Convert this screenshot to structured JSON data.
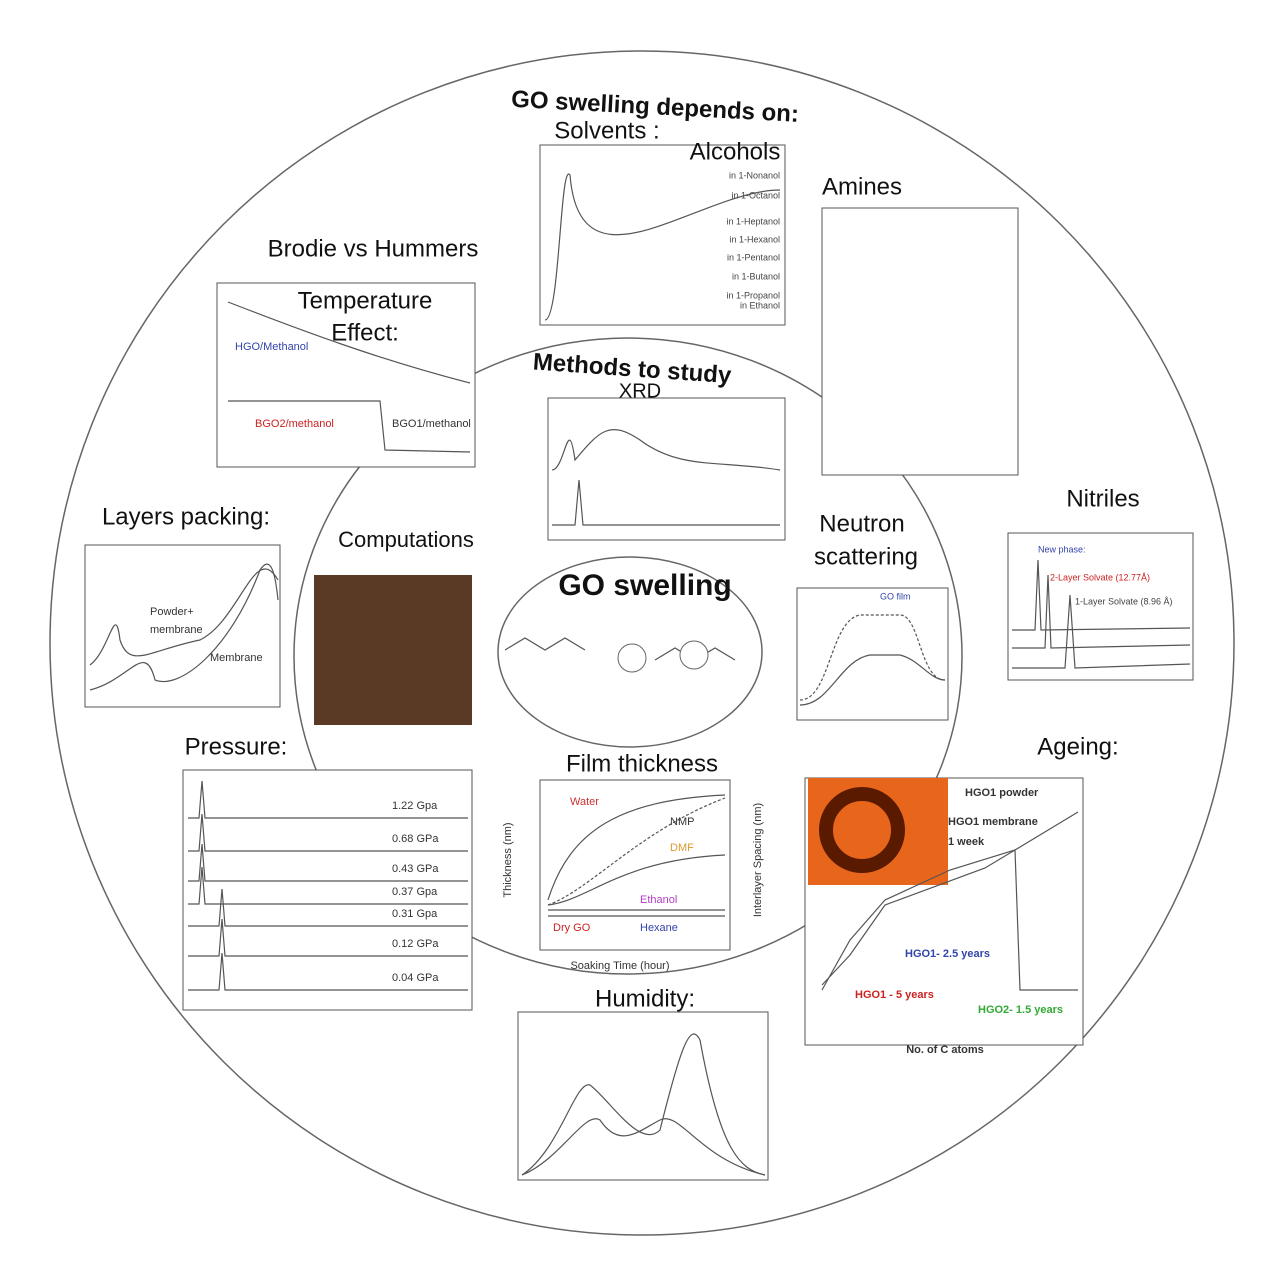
{
  "header": {
    "title": "GO swelling depends on:",
    "methods": "Methods to study",
    "center": "GO swelling"
  },
  "factors": {
    "solvents": "Solvents :",
    "alcohols": "Alcohols",
    "amines": "Amines",
    "brodie": "Brodie vs Hummers",
    "temperature": [
      "Temperature",
      "Effect:"
    ],
    "xrd": "XRD",
    "layers": "Layers packing:",
    "computations": "Computations",
    "neutron": [
      "Neutron",
      "scattering"
    ],
    "nitriles": "Nitriles",
    "pressure": "Pressure:",
    "film": "Film thickness",
    "ageing": "Ageing:",
    "humidity": "Humidity:"
  },
  "panels": {
    "temperature": [
      "HGO/Methanol",
      "BGO2/methanol",
      "BGO1/methanol"
    ],
    "layers": [
      "Powder+",
      "membrane",
      "Membrane"
    ],
    "pressure": [
      "1.22 Gpa",
      "0.68 GPa",
      "0.43 GPa",
      "0.37 Gpa",
      "0.31 Gpa",
      "0.12 GPa",
      "0.04 GPa"
    ],
    "film": [
      "Water",
      "NMP",
      "DMF",
      "Ethanol",
      "Dry GO",
      "Hexane",
      "Soaking Time (hour)",
      "Thickness (nm)",
      "Interlayer Spacing (nm)"
    ],
    "ageing": [
      "HGO1 powder",
      "HGO1 membrane",
      "1 week",
      "HGO1- 2.5 years",
      "HGO1 - 5 years",
      "HGO2- 1.5 years",
      "No. of C atoms"
    ],
    "nitriles": [
      "New phase:",
      "2-Layer Solvate (12.77Å)",
      "1-Layer Solvate (8.96 Å)"
    ],
    "solvents": [
      "in 1-Nonanol",
      "in 1-Octanol",
      "in 1-Heptanol",
      "in 1-Hexanol",
      "in 1-Pentanol",
      "in 1-Butanol",
      "in 1-Propanol",
      "in Ethanol"
    ],
    "neutron": [
      "GO film"
    ]
  }
}
